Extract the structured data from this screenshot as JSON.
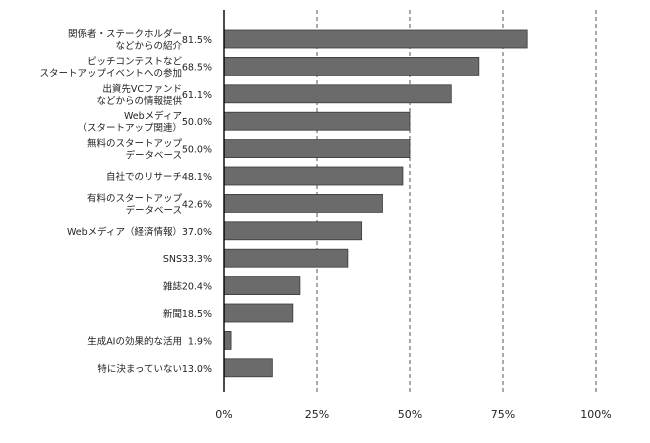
{
  "chart_data": {
    "type": "bar",
    "orientation": "horizontal",
    "title": "",
    "xlabel": "",
    "ylabel": "",
    "xlim": [
      0,
      100
    ],
    "xticks": [
      0,
      25,
      50,
      75,
      100
    ],
    "xtick_labels": [
      "0%",
      "25%",
      "50%",
      "75%",
      "100%"
    ],
    "grid": "vertical dashed",
    "categories": [
      [
        "関係者・ステークホルダー",
        "などからの紹介"
      ],
      [
        "ピッチコンテストなど",
        "スタートアップイベントへの参加"
      ],
      [
        "出資先VCファンド",
        "などからの情報提供"
      ],
      [
        "Webメディア",
        "（スタートアップ関連）"
      ],
      [
        "無料のスタートアップ",
        "データベース"
      ],
      [
        "自社でのリサーチ"
      ],
      [
        "有料のスタートアップ",
        "データベース"
      ],
      [
        "Webメディア（経済情報）"
      ],
      [
        "SNS"
      ],
      [
        "雑誌"
      ],
      [
        "新聞"
      ],
      [
        "生成AIの効果的な活用"
      ],
      [
        "特に決まっていない"
      ]
    ],
    "values": [
      81.5,
      68.5,
      61.1,
      50.0,
      50.0,
      48.1,
      42.6,
      37.0,
      33.3,
      20.4,
      18.5,
      1.9,
      13.0
    ],
    "value_labels": [
      "81.5%",
      "68.5%",
      "61.1%",
      "50.0%",
      "50.0%",
      "48.1%",
      "42.6%",
      "37.0%",
      "33.3%",
      "20.4%",
      "18.5%",
      "1.9%",
      "13.0%"
    ],
    "colors": {
      "bar_fill": "#6b6b6b",
      "bar_stroke": "#3a3a3a",
      "grid": "#555555",
      "axis": "#000000",
      "text": "#222222"
    }
  }
}
